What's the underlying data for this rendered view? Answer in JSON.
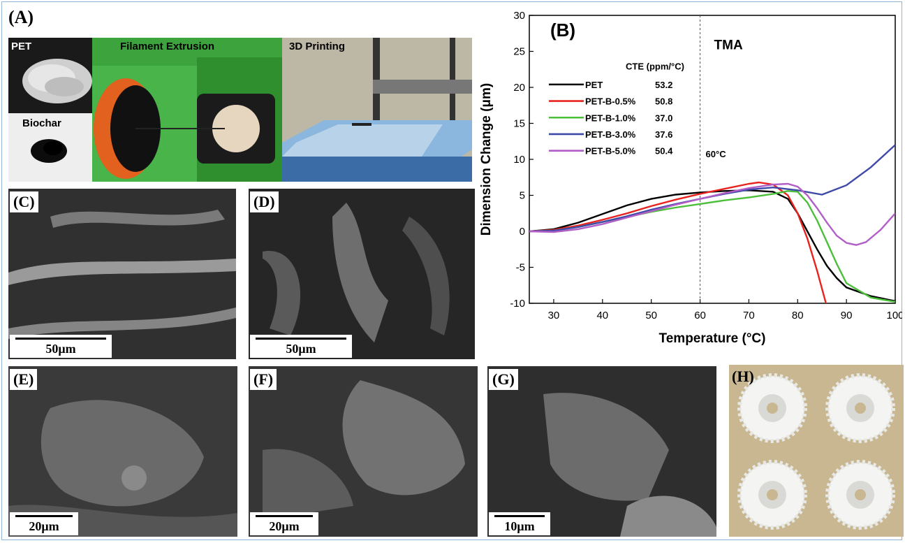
{
  "panels": {
    "A": {
      "label": "(A)",
      "pet_label": "PET",
      "biochar_label": "Biochar",
      "extrusion_label": "Filament Extrusion",
      "printing_label": "3D Printing"
    },
    "B": {
      "label": "(B)"
    },
    "C": {
      "label": "(C)",
      "scale": "50μm"
    },
    "D": {
      "label": "(D)",
      "scale": "50μm"
    },
    "E": {
      "label": "(E)",
      "scale": "20μm"
    },
    "F": {
      "label": "(F)",
      "scale": "20μm"
    },
    "G": {
      "label": "(G)",
      "scale": "10μm"
    },
    "H": {
      "label": "(H)"
    }
  },
  "chart_data": {
    "type": "line",
    "xlabel": "Temperature (°C)",
    "ylabel": "Dimension Change (μm)",
    "xlim": [
      25,
      100
    ],
    "ylim": [
      -10,
      30
    ],
    "xticks": [
      30,
      40,
      50,
      60,
      70,
      80,
      90,
      100
    ],
    "yticks": [
      -10,
      -5,
      0,
      5,
      10,
      15,
      20,
      25,
      30
    ],
    "grid": false,
    "annotation_tma": "TMA",
    "annotation_60c": "60°C",
    "vline_x": 60,
    "legend_header": "CTE (ppm/°C)",
    "legend_position": "upper-left",
    "series": [
      {
        "name": "PET",
        "cte": "53.2",
        "color": "#000000",
        "x": [
          25,
          30,
          35,
          40,
          45,
          50,
          55,
          60,
          65,
          70,
          75,
          78,
          80,
          82,
          84,
          86,
          88,
          90,
          95,
          100
        ],
        "y": [
          0,
          0.3,
          1.2,
          2.4,
          3.6,
          4.5,
          5.1,
          5.4,
          5.6,
          5.7,
          5.5,
          4.5,
          2.5,
          0,
          -2.5,
          -4.8,
          -6.5,
          -7.8,
          -9.0,
          -9.7
        ]
      },
      {
        "name": "PET-B-0.5%",
        "cte": "50.8",
        "color": "#e8231f",
        "x": [
          25,
          30,
          35,
          40,
          45,
          50,
          55,
          60,
          65,
          70,
          72,
          75,
          78,
          80,
          82,
          84,
          85,
          86
        ],
        "y": [
          0,
          0.2,
          0.8,
          1.6,
          2.5,
          3.5,
          4.4,
          5.2,
          5.9,
          6.6,
          6.8,
          6.5,
          5.0,
          2.5,
          -1.0,
          -5.5,
          -8.0,
          -10.5
        ]
      },
      {
        "name": "PET-B-1.0%",
        "cte": "37.0",
        "color": "#4cbf3a",
        "x": [
          25,
          30,
          35,
          40,
          45,
          50,
          55,
          60,
          65,
          70,
          75,
          78,
          80,
          82,
          84,
          86,
          88,
          90,
          95,
          100
        ],
        "y": [
          0,
          0.1,
          0.6,
          1.3,
          2.0,
          2.7,
          3.3,
          3.8,
          4.3,
          4.7,
          5.2,
          5.6,
          5.5,
          4.0,
          1.5,
          -1.5,
          -4.5,
          -7.2,
          -9.2,
          -9.8
        ]
      },
      {
        "name": "PET-B-3.0%",
        "cte": "37.6",
        "color": "#3f4aa8",
        "x": [
          25,
          30,
          35,
          40,
          45,
          50,
          55,
          60,
          65,
          70,
          75,
          80,
          85,
          90,
          95,
          100
        ],
        "y": [
          0,
          0.1,
          0.6,
          1.3,
          2.1,
          3.0,
          3.8,
          4.5,
          5.2,
          5.8,
          6.1,
          5.7,
          5.1,
          6.4,
          8.9,
          12.0
        ]
      },
      {
        "name": "PET-B-5.0%",
        "cte": "50.4",
        "color": "#b25ec7",
        "x": [
          25,
          30,
          35,
          40,
          45,
          50,
          55,
          60,
          65,
          70,
          75,
          78,
          80,
          82,
          84,
          86,
          88,
          90,
          92,
          94,
          97,
          100
        ],
        "y": [
          0,
          -0.1,
          0.3,
          1.0,
          1.9,
          2.8,
          3.7,
          4.5,
          5.3,
          6.0,
          6.5,
          6.6,
          6.2,
          5.0,
          3.2,
          1.2,
          -0.6,
          -1.6,
          -1.9,
          -1.5,
          0.2,
          2.5
        ]
      }
    ]
  }
}
